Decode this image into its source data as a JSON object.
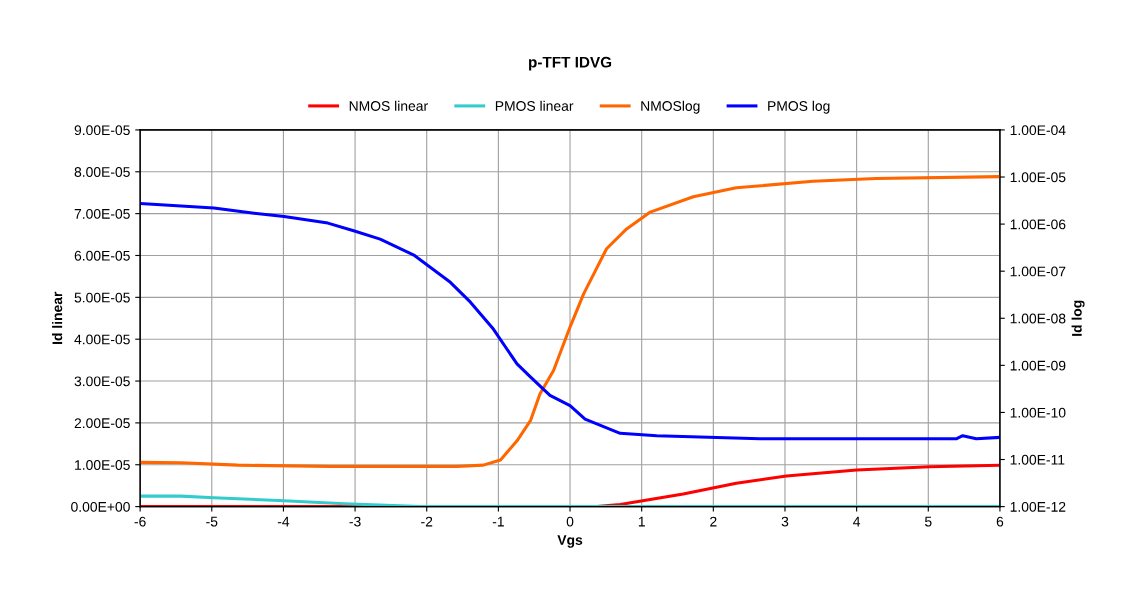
{
  "chart_data": {
    "type": "line",
    "title": "p-TFT IDVG",
    "xlabel": "Vgs",
    "ylabel": "Id linear",
    "y2label": "Id log",
    "log": "y2",
    "grid": true,
    "legend": "top",
    "marker": "none",
    "line_style": "solid",
    "xlim": [
      -6,
      6
    ],
    "xticks": [
      -6,
      -5,
      -4,
      -3,
      -2,
      -1,
      0,
      1,
      2,
      3,
      4,
      5,
      6
    ],
    "ylim": [
      0,
      9e-05
    ],
    "yticks": [
      {
        "value": 0,
        "label": "0.00E+00"
      },
      {
        "value": 1e-05,
        "label": "1.00E-05"
      },
      {
        "value": 2e-05,
        "label": "2.00E-05"
      },
      {
        "value": 3e-05,
        "label": "3.00E-05"
      },
      {
        "value": 4e-05,
        "label": "4.00E-05"
      },
      {
        "value": 5e-05,
        "label": "5.00E-05"
      },
      {
        "value": 6e-05,
        "label": "6.00E-05"
      },
      {
        "value": 7e-05,
        "label": "7.00E-05"
      },
      {
        "value": 8e-05,
        "label": "8.00E-05"
      },
      {
        "value": 9e-05,
        "label": "9.00E-05"
      }
    ],
    "y2lim": [
      1e-12,
      0.0001
    ],
    "y2ticks": [
      {
        "value": 1e-12,
        "label": "1.00E-12"
      },
      {
        "value": 1e-11,
        "label": "1.00E-11"
      },
      {
        "value": 1e-10,
        "label": "1.00E-10"
      },
      {
        "value": 1e-09,
        "label": "1.00E-09"
      },
      {
        "value": 1e-08,
        "label": "1.00E-08"
      },
      {
        "value": 1e-07,
        "label": "1.00E-07"
      },
      {
        "value": 1e-06,
        "label": "1.00E-06"
      },
      {
        "value": 1e-05,
        "label": "1.00E-05"
      },
      {
        "value": 0.0001,
        "label": "1.00E-04"
      }
    ],
    "series": [
      {
        "name": "NMOS linear",
        "color": "#ff0000",
        "x": [
          -6,
          -2,
          0.37,
          0.7,
          1.58,
          2.32,
          3.02,
          4.0,
          5.02,
          6
        ],
        "values": [
          0,
          0,
          0,
          5e-07,
          3e-06,
          5.6e-06,
          7.3e-06,
          8.75e-06,
          9.5e-06,
          9.9e-06
        ]
      },
      {
        "name": "PMOS linear",
        "color": "#33cccc",
        "x": [
          -6,
          -5.43,
          -4.97,
          -3.99,
          -3.15,
          -2.08,
          6
        ],
        "values": [
          2.5e-06,
          2.5e-06,
          2.1e-06,
          1.4e-06,
          7e-07,
          0,
          0
        ]
      },
      {
        "name": "NMOSlog",
        "color": "#ff6600",
        "axis": "y2",
        "x": [
          -6,
          -5.43,
          -4.64,
          -3.34,
          -1.58,
          -1.21,
          -0.97,
          -0.74,
          -0.55,
          -0.42,
          -0.23,
          0,
          0.19,
          0.51,
          0.79,
          1.12,
          1.72,
          2.32,
          3.39,
          4.27,
          6
        ],
        "values": [
          8.7e-12,
          8.5e-12,
          7.6e-12,
          7.1e-12,
          7.1e-12,
          7.6e-12,
          9.8e-12,
          2.5e-11,
          6.8e-11,
          2.45e-10,
          7.8e-10,
          6.5e-09,
          3.3e-08,
          3e-07,
          7.9e-07,
          1.8e-06,
          3.8e-06,
          5.9e-06,
          8.1e-06,
          9.3e-06,
          1.02e-05
        ]
      },
      {
        "name": "PMOS log",
        "color": "#0000ff",
        "axis": "y2",
        "x": [
          -6,
          -4.97,
          -4.41,
          -3.99,
          -3.38,
          -3.02,
          -2.65,
          -2.18,
          -1.67,
          -1.39,
          -1.07,
          -0.74,
          -0.55,
          -0.28,
          0,
          0.21,
          0.7,
          1.21,
          2.65,
          5.39,
          5.48,
          5.67,
          6
        ],
        "values": [
          2.75e-06,
          2.19e-06,
          1.7e-06,
          1.45e-06,
          1.05e-06,
          7.2e-07,
          4.8e-07,
          2.2e-07,
          5.8e-08,
          2.2e-08,
          5.9e-09,
          1.07e-09,
          5.6e-10,
          2.3e-10,
          1.4e-10,
          7.2e-11,
          3.6e-11,
          3.2e-11,
          2.75e-11,
          2.75e-11,
          3.2e-11,
          2.75e-11,
          2.95e-11
        ]
      }
    ]
  }
}
